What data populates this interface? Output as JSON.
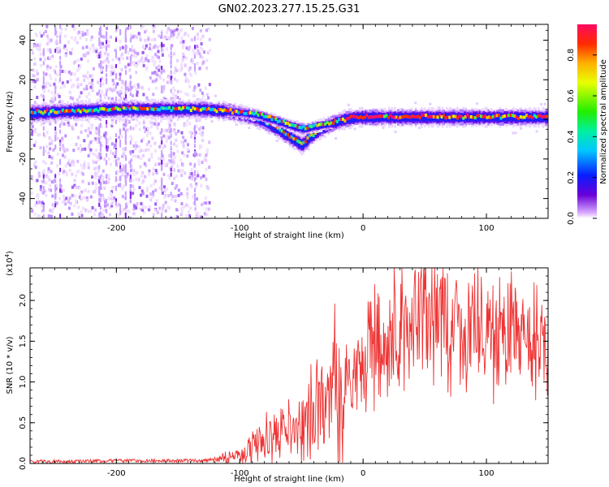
{
  "figure_title": "GN02.2023.277.15.25.G31",
  "chart_data": [
    {
      "type": "heatmap",
      "xlabel": "Height of straight line (km)",
      "ylabel": "Frequency (Hz)",
      "xlim": [
        -270,
        150
      ],
      "ylim": [
        -50,
        48
      ],
      "xticks": [
        -200,
        -100,
        0,
        100
      ],
      "yticks": [
        -40,
        -20,
        0,
        20,
        40
      ],
      "colorbar": {
        "label": "Normalized spectral amplitude",
        "range": [
          0,
          0.95
        ],
        "ticks": [
          0.0,
          0.2,
          0.4,
          0.6,
          0.8
        ],
        "tick_labels": [
          "0.0",
          "0.2",
          "0.4",
          "0.6",
          "0.8"
        ]
      },
      "ridge_center": [
        [
          -270,
          3
        ],
        [
          -240,
          4
        ],
        [
          -200,
          5
        ],
        [
          -160,
          5
        ],
        [
          -130,
          5
        ],
        [
          -110,
          4
        ],
        [
          -95,
          2
        ],
        [
          -85,
          0
        ],
        [
          -75,
          -3
        ],
        [
          -65,
          -7
        ],
        [
          -55,
          -11
        ],
        [
          -50,
          -13
        ],
        [
          -45,
          -10
        ],
        [
          -35,
          -5
        ],
        [
          -25,
          -2
        ],
        [
          -15,
          0
        ],
        [
          -5,
          1
        ],
        [
          0,
          1
        ],
        [
          50,
          1
        ],
        [
          100,
          1
        ],
        [
          150,
          1
        ]
      ],
      "ridge_branch": [
        [
          -110,
          4
        ],
        [
          -95,
          3
        ],
        [
          -85,
          2
        ],
        [
          -75,
          0
        ],
        [
          -65,
          -2
        ],
        [
          -55,
          -4
        ],
        [
          -48,
          -5
        ],
        [
          -42,
          -4
        ],
        [
          -35,
          -3
        ],
        [
          -25,
          -2
        ]
      ],
      "scatter_region": {
        "xlim": [
          -270,
          -125
        ],
        "ylim": [
          -50,
          48
        ]
      }
    },
    {
      "type": "line",
      "xlabel": "Height of straight line (km)",
      "ylabel": "SNR (10 * v/v)",
      "scale_label": "(x10",
      "scale_exponent": "4",
      "xlim": [
        -270,
        150
      ],
      "ylim": [
        0,
        2.4
      ],
      "xticks": [
        -200,
        -100,
        0,
        100
      ],
      "yticks": [
        0.0,
        0.5,
        1.0,
        1.5,
        2.0
      ],
      "ytick_labels": [
        "0.0",
        "0.5",
        "1.0",
        "1.5",
        "2.0"
      ],
      "series": [
        {
          "color": "#ee3333",
          "x": [
            -270,
            -240,
            -200,
            -160,
            -130,
            -120,
            -110,
            -100,
            -90,
            -80,
            -70,
            -60,
            -50,
            -40,
            -30,
            -20,
            -10,
            0,
            10,
            20,
            30,
            40,
            50,
            60,
            70,
            80,
            90,
            100,
            110,
            120,
            130,
            140,
            150
          ],
          "y": [
            0.02,
            0.02,
            0.03,
            0.03,
            0.03,
            0.05,
            0.08,
            0.12,
            0.18,
            0.28,
            0.35,
            0.42,
            0.5,
            0.6,
            0.75,
            0.9,
            1.05,
            1.2,
            1.4,
            1.6,
            1.72,
            1.78,
            1.8,
            1.78,
            1.75,
            1.72,
            1.68,
            1.62,
            1.58,
            1.55,
            1.5,
            1.45,
            1.4
          ]
        }
      ]
    }
  ]
}
